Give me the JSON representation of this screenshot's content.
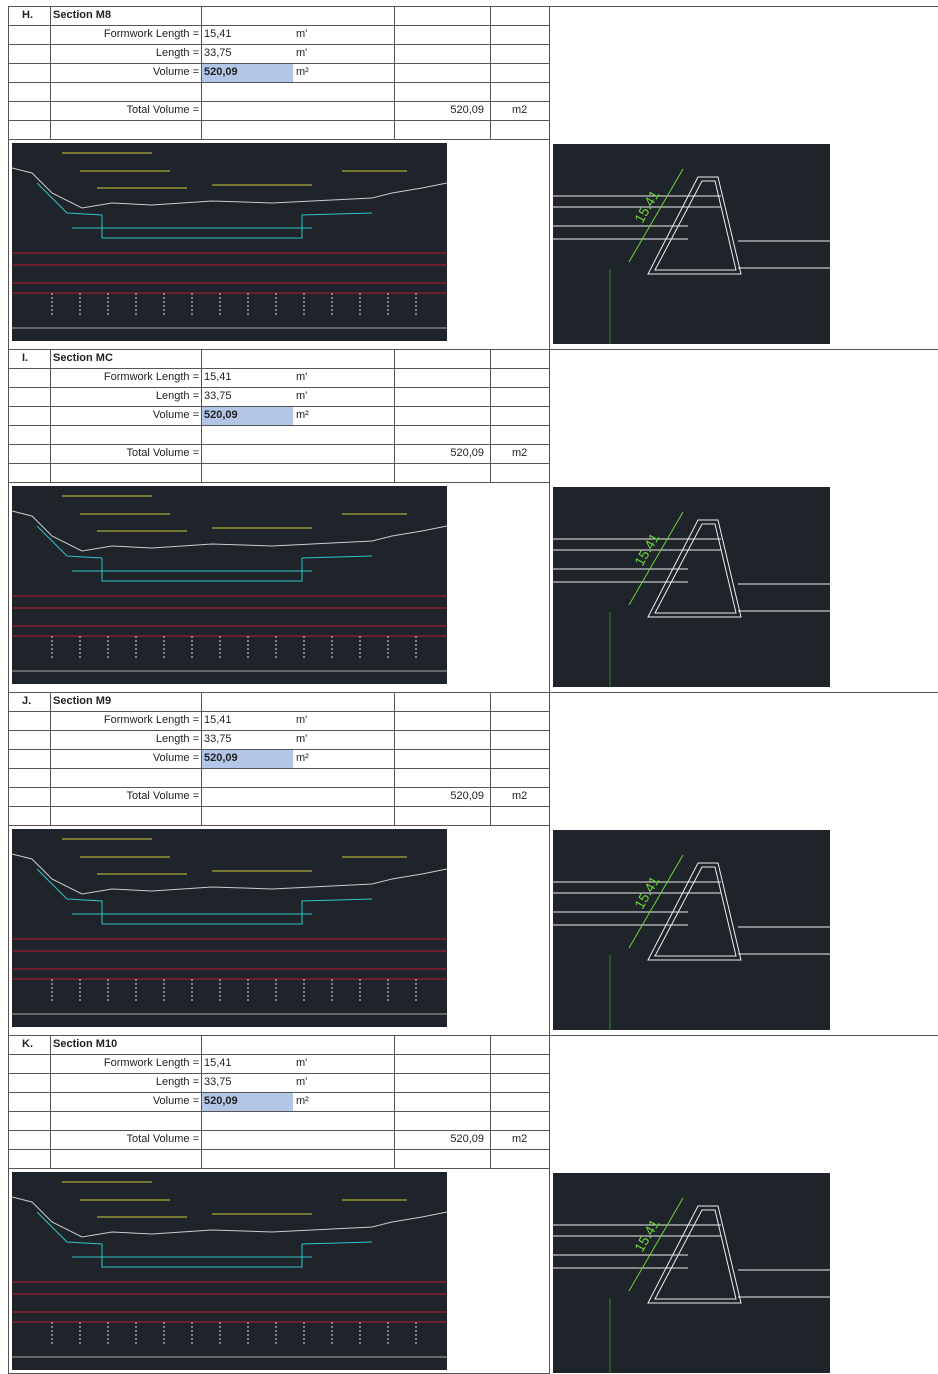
{
  "sections": [
    {
      "letter": "H.",
      "title": "Section M8",
      "rows": [
        {
          "label": "Formwork Length =",
          "value": "15,41",
          "unit": "m'"
        },
        {
          "label": "Length =",
          "value": "33,75",
          "unit": "m'"
        },
        {
          "label": "Volume =",
          "value": "520,09",
          "unit": "m²"
        }
      ],
      "total": {
        "label": "Total Volume =",
        "value": "520,09",
        "unit": "m2"
      },
      "dimension": "15.41"
    },
    {
      "letter": "I.",
      "title": "Section MC",
      "rows": [
        {
          "label": "Formwork Length =",
          "value": "15,41",
          "unit": "m'"
        },
        {
          "label": "Length =",
          "value": "33,75",
          "unit": "m'"
        },
        {
          "label": "Volume =",
          "value": "520,09",
          "unit": "m²"
        }
      ],
      "total": {
        "label": "Total Volume =",
        "value": "520,09",
        "unit": "m2"
      },
      "dimension": "15.41"
    },
    {
      "letter": "J.",
      "title": "Section M9",
      "rows": [
        {
          "label": "Formwork Length =",
          "value": "15,41",
          "unit": "m'"
        },
        {
          "label": "Length =",
          "value": "33,75",
          "unit": "m'"
        },
        {
          "label": "Volume =",
          "value": "520,09",
          "unit": "m²"
        }
      ],
      "total": {
        "label": "Total Volume =",
        "value": "520,09",
        "unit": "m2"
      },
      "dimension": "15.41"
    },
    {
      "letter": "K.",
      "title": "Section M10",
      "rows": [
        {
          "label": "Formwork Length =",
          "value": "15,41",
          "unit": "m'"
        },
        {
          "label": "Length =",
          "value": "33,75",
          "unit": "m'"
        },
        {
          "label": "Volume =",
          "value": "520,09",
          "unit": "m²"
        }
      ],
      "total": {
        "label": "Total Volume =",
        "value": "520,09",
        "unit": "m2"
      },
      "dimension": "15.41"
    }
  ]
}
